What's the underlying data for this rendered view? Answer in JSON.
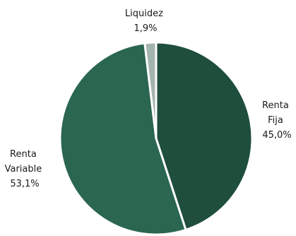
{
  "chart_data": {
    "type": "pie",
    "title": "",
    "start_angle_deg": 0,
    "direction": "clockwise",
    "slices": [
      {
        "label_lines": [
          "Renta",
          "Fija"
        ],
        "value": 45.0,
        "value_text": "45,0%",
        "color": "#1f4e3d"
      },
      {
        "label_lines": [
          "Renta",
          "Variable"
        ],
        "value": 53.1,
        "value_text": "53,1%",
        "color": "#2a6650"
      },
      {
        "label_lines": [
          "Liquidez"
        ],
        "value": 1.9,
        "value_text": "1,9%",
        "color": "#a3b6ae"
      }
    ],
    "legend": "none",
    "slice_border_color": "#ffffff"
  }
}
